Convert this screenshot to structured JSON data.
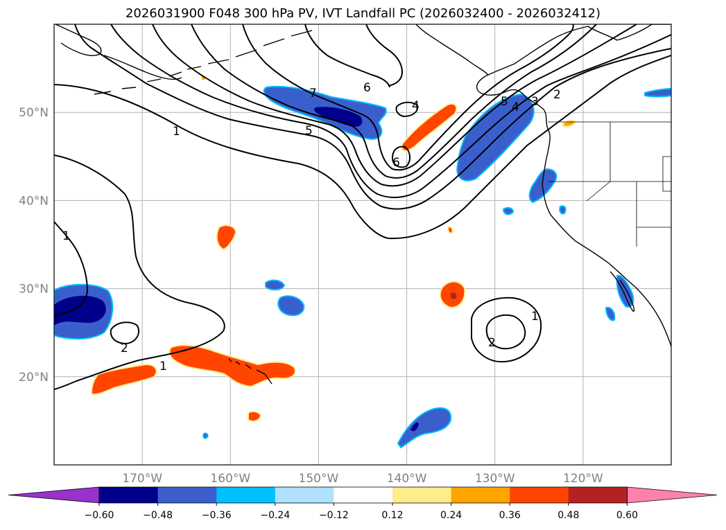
{
  "title": "2026031900 F048 300 hPa PV, IVT Landfall PC (2026032400 - 2026032412)",
  "map": {
    "projection": "PlateCarree",
    "lon_range": [
      -180,
      -110
    ],
    "lat_range": [
      10,
      60
    ],
    "lat_ticks": [
      {
        "label": "50°N",
        "lat": 50
      },
      {
        "label": "40°N",
        "lat": 40
      },
      {
        "label": "30°N",
        "lat": 30
      },
      {
        "label": "20°N",
        "lat": 20
      }
    ],
    "lon_ticks": [
      {
        "label": "170°W",
        "lon": -170
      },
      {
        "label": "160°W",
        "lon": -160
      },
      {
        "label": "150°W",
        "lon": -150
      },
      {
        "label": "140°W",
        "lon": -140
      },
      {
        "label": "130°W",
        "lon": -130
      },
      {
        "label": "120°W",
        "lon": -120
      }
    ],
    "gridlines": true,
    "contour_labels": [
      "1",
      "7",
      "6",
      "5",
      "4",
      "6",
      "5",
      "4",
      "3",
      "2",
      "1",
      "2",
      "1",
      "2",
      "1"
    ]
  },
  "colorbar": {
    "levels": [
      "-0.60",
      "-0.48",
      "-0.36",
      "-0.24",
      "-0.12",
      "0.12",
      "0.24",
      "0.36",
      "0.48",
      "0.60"
    ],
    "colors": [
      "#9932cc",
      "#00008b",
      "#3a5fcd",
      "#00bfff",
      "#b0e2ff",
      "#ffffff",
      "#ffec8b",
      "#ffa500",
      "#ff4500",
      "#b22222",
      "#ff82ab"
    ]
  },
  "shading_colors": {
    "strong_negative": "#00008b",
    "negative": "#3a5fcd",
    "weak_negative": "#00bfff",
    "weak_positive": "#ffec8b",
    "positive": "#ffa500",
    "strong_positive": "#ff4500",
    "very_strong_positive": "#b22222"
  }
}
